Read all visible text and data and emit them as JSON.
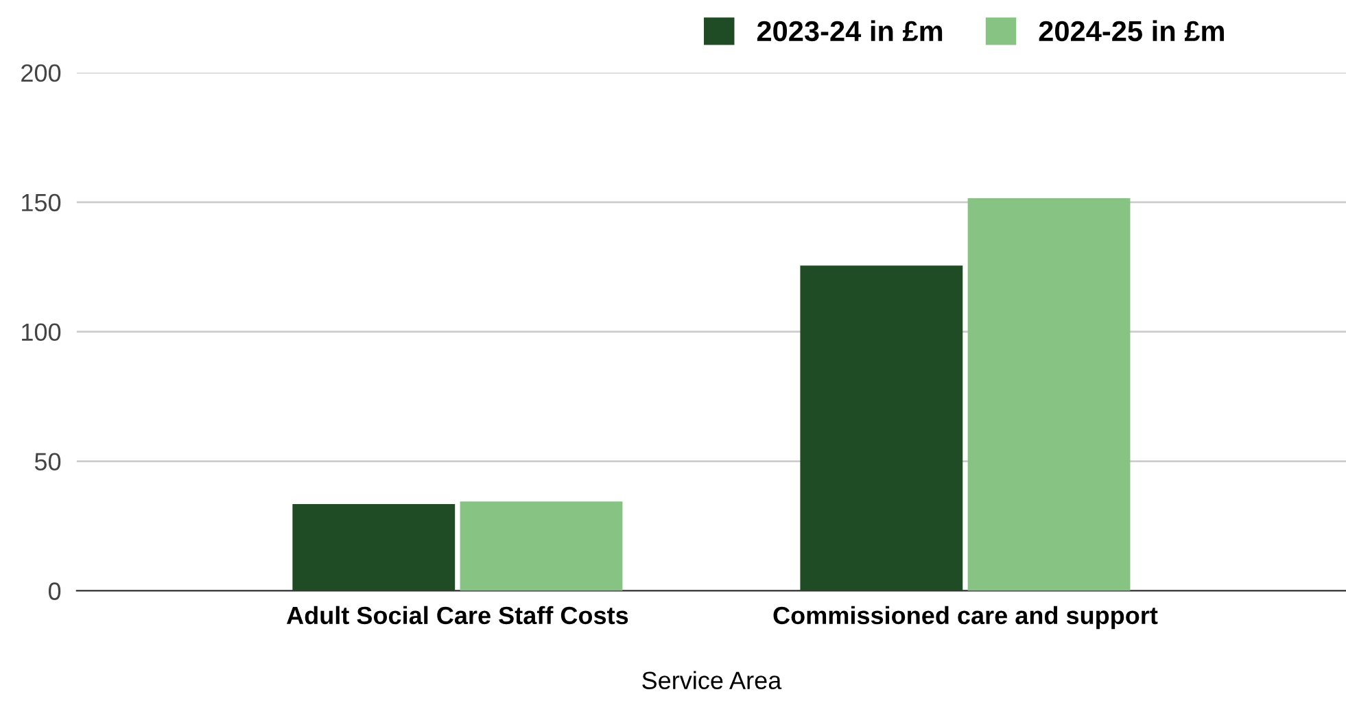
{
  "chart_data": {
    "type": "bar",
    "xlabel": "Service Area",
    "categories": [
      "Adult Social Care Staff Costs",
      "Commissioned care and support"
    ],
    "series": [
      {
        "name": "2023-24 in £m",
        "color": "#1f4b25",
        "values": [
          33.5,
          125.5
        ]
      },
      {
        "name": "2024-25 in £m",
        "color": "#87c484",
        "values": [
          34.5,
          151.5
        ]
      }
    ],
    "ylim": [
      0,
      200
    ],
    "yticks": [
      0,
      50,
      100,
      150,
      200
    ],
    "grid": "y",
    "legend": "top"
  }
}
